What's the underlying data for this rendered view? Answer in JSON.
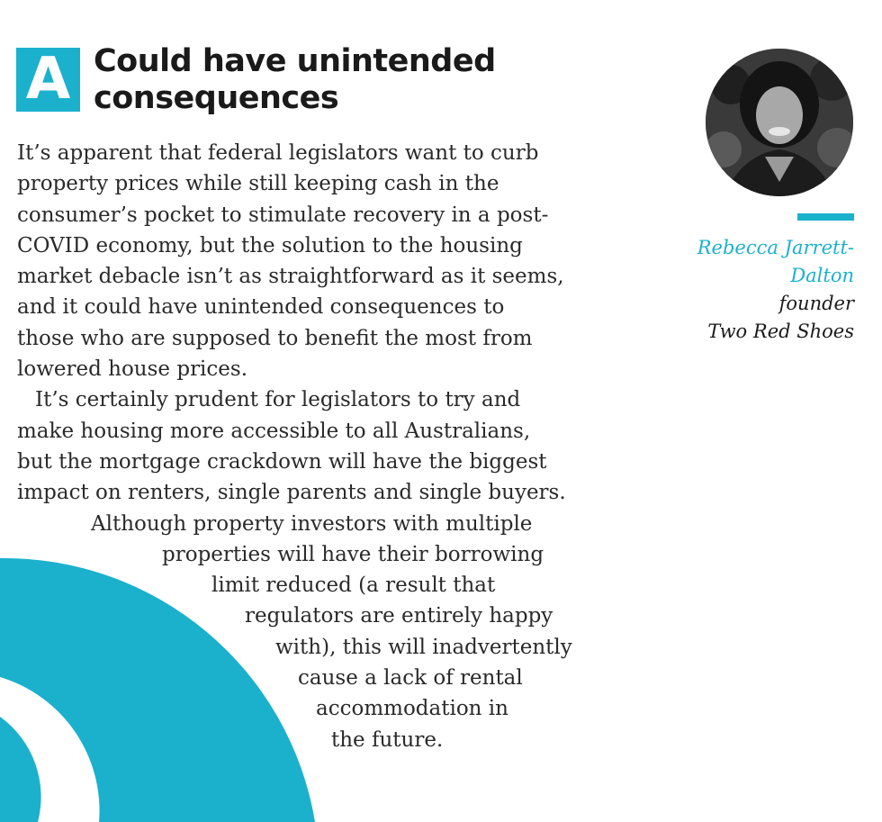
{
  "badge": {
    "letter": "A"
  },
  "headline": {
    "line1": "Could have unintended",
    "line2": "consequences"
  },
  "body": {
    "lines": [
      "It’s apparent that federal legislators want to curb",
      "property prices while still keeping cash in the",
      "consumer’s pocket to stimulate recovery in a post-",
      "COVID economy, but the solution to the housing",
      "market debacle isn’t as straightforward as it seems,",
      "and it could have unintended consequences to",
      "those who are supposed to benefit the most from",
      "lowered house prices.",
      "It’s certainly prudent for legislators to try and",
      "make housing more accessible to all Australians,",
      "but the mortgage crackdown will have the biggest",
      "impact on renters, single parents and single buyers.",
      "Although property investors with multiple",
      "properties will have their borrowing",
      "limit reduced (a result that",
      "regulators are entirely happy",
      "with), this will inadvertently",
      "cause a lack of rental",
      "accommodation in",
      "the future."
    ]
  },
  "author": {
    "name_line1": "Rebecca Jarrett-",
    "name_line2": "Dalton",
    "role": "founder",
    "organization": "Two Red Shoes"
  },
  "colors": {
    "accent": "#1bb1cd",
    "text": "#222222",
    "background": "#ffffff"
  }
}
